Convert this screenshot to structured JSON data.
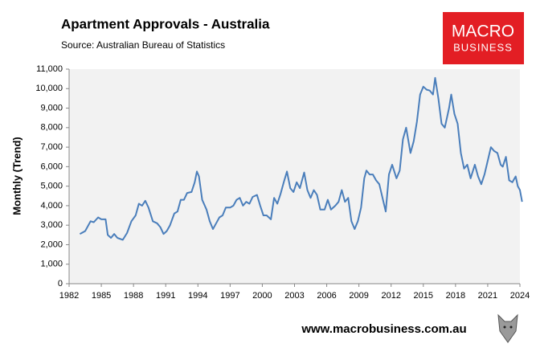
{
  "chart_data": {
    "type": "line",
    "title": "Apartment Approvals - Australia",
    "subtitle": "Source:   Australian Bureau of Statistics",
    "y_label": "Monthly (Trend)",
    "logo": [
      "MACRO",
      "BUSINESS"
    ],
    "footer": "www.macrobusiness.com.au",
    "color": "#4a7ebb",
    "x": [
      1983.0,
      1983.5,
      1984.0,
      1984.3,
      1984.7,
      1985.0,
      1985.4,
      1985.6,
      1985.9,
      1986.2,
      1986.5,
      1987.0,
      1987.4,
      1987.8,
      1988.2,
      1988.5,
      1988.8,
      1989.1,
      1989.4,
      1989.8,
      1990.2,
      1990.5,
      1990.8,
      1991.1,
      1991.4,
      1991.8,
      1992.1,
      1992.4,
      1992.7,
      1993.0,
      1993.4,
      1993.7,
      1993.9,
      1994.1,
      1994.4,
      1994.8,
      1995.1,
      1995.4,
      1995.7,
      1996.0,
      1996.3,
      1996.6,
      1997.0,
      1997.3,
      1997.6,
      1997.9,
      1998.2,
      1998.5,
      1998.8,
      1999.1,
      1999.5,
      1999.8,
      2000.1,
      2000.4,
      2000.8,
      2001.1,
      2001.4,
      2001.7,
      2002.0,
      2002.3,
      2002.6,
      2002.9,
      2003.2,
      2003.5,
      2003.9,
      2004.2,
      2004.5,
      2004.8,
      2005.1,
      2005.4,
      2005.8,
      2006.1,
      2006.4,
      2006.8,
      2007.1,
      2007.4,
      2007.7,
      2008.0,
      2008.3,
      2008.6,
      2008.9,
      2009.2,
      2009.5,
      2009.7,
      2010.0,
      2010.3,
      2010.6,
      2010.9,
      2011.2,
      2011.5,
      2011.8,
      2012.1,
      2012.5,
      2012.8,
      2013.1,
      2013.4,
      2013.8,
      2014.1,
      2014.4,
      2014.7,
      2015.0,
      2015.3,
      2015.6,
      2015.9,
      2016.1,
      2016.4,
      2016.7,
      2017.0,
      2017.4,
      2017.6,
      2017.9,
      2018.2,
      2018.5,
      2018.8,
      2019.1,
      2019.4,
      2019.8,
      2020.1,
      2020.4,
      2020.7,
      2021.0,
      2021.3,
      2021.6,
      2021.9,
      2022.2,
      2022.4,
      2022.7,
      2023.0,
      2023.3,
      2023.6,
      2023.8,
      2024.0,
      2024.2
    ],
    "values": [
      2550,
      2700,
      3200,
      3150,
      3400,
      3300,
      3300,
      2500,
      2350,
      2550,
      2350,
      2250,
      2600,
      3200,
      3500,
      4100,
      4000,
      4250,
      3900,
      3200,
      3100,
      2900,
      2550,
      2700,
      3000,
      3600,
      3700,
      4300,
      4300,
      4650,
      4700,
      5200,
      5750,
      5500,
      4300,
      3800,
      3200,
      2800,
      3100,
      3400,
      3500,
      3900,
      3900,
      4000,
      4300,
      4400,
      4000,
      4200,
      4100,
      4450,
      4550,
      4000,
      3500,
      3500,
      3300,
      4400,
      4100,
      4600,
      5200,
      5750,
      4900,
      4700,
      5200,
      4900,
      5700,
      4800,
      4400,
      4800,
      4550,
      3800,
      3800,
      4300,
      3800,
      4000,
      4200,
      4800,
      4200,
      4400,
      3200,
      2800,
      3200,
      3900,
      5400,
      5800,
      5600,
      5600,
      5300,
      5100,
      4400,
      3700,
      5600,
      6100,
      5400,
      5800,
      7400,
      8000,
      6700,
      7300,
      8300,
      9700,
      10100,
      9950,
      9900,
      9700,
      10550,
      9500,
      8200,
      8000,
      9000,
      9700,
      8700,
      8200,
      6700,
      5900,
      6100,
      5400,
      6100,
      5500,
      5100,
      5600,
      6300,
      7000,
      6800,
      6700,
      6100,
      6000,
      6500,
      5300,
      5200,
      5500,
      5000,
      4800,
      4200
    ],
    "xlim": [
      1982,
      2024
    ],
    "xticks": [
      1982,
      1985,
      1988,
      1991,
      1994,
      1997,
      2000,
      2003,
      2006,
      2009,
      2012,
      2015,
      2018,
      2021,
      2024
    ],
    "ylim": [
      0,
      11000
    ],
    "yticks": [
      0,
      {
        "value": 1000,
        "label": "1,000"
      },
      {
        "value": 2000,
        "label": "2,000"
      },
      {
        "value": 3000,
        "label": "3,000"
      },
      {
        "value": 4000,
        "label": "4,000"
      },
      {
        "value": 5000,
        "label": "5,000"
      },
      {
        "value": 6000,
        "label": "6,000"
      },
      {
        "value": 7000,
        "label": "7,000"
      },
      {
        "value": 8000,
        "label": "8,000"
      },
      {
        "value": 9000,
        "label": "9,000"
      },
      {
        "value": 10000,
        "label": "10,000"
      },
      {
        "value": 11000,
        "label": "11,000"
      }
    ]
  }
}
